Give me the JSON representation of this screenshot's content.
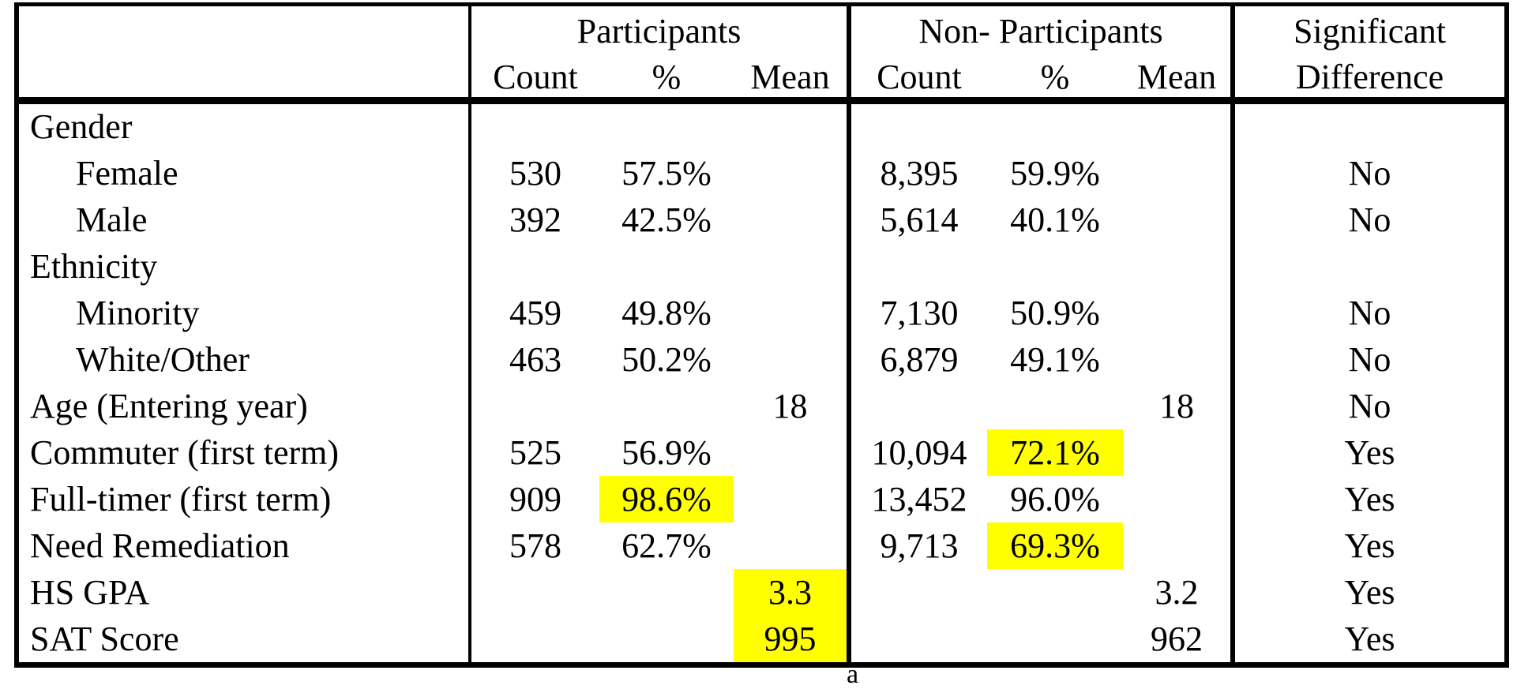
{
  "colors": {
    "highlight": "#FFFF00",
    "border": "#000000",
    "text": "#000000",
    "background": "#FFFFFF"
  },
  "header": {
    "corner": "",
    "participants_group": "Participants",
    "non_participants_group": "Non- Participants",
    "significant_line1": "Significant",
    "significant_line2": "Difference",
    "p_sub": {
      "count": "Count",
      "pct": "%",
      "mean": "Mean"
    },
    "np_sub": {
      "count": "Count",
      "pct": "%",
      "mean": "Mean"
    }
  },
  "rows": [
    {
      "label": "Gender"
    },
    {
      "label": "Female",
      "p_count": "530",
      "p_pct": "57.5%",
      "np_count": "8,395",
      "np_pct": "59.9%",
      "sig": "No"
    },
    {
      "label": "Male",
      "p_count": "392",
      "p_pct": "42.5%",
      "np_count": "5,614",
      "np_pct": "40.1%",
      "sig": "No"
    },
    {
      "label": "Ethnicity"
    },
    {
      "label": "Minority",
      "p_count": "459",
      "p_pct": "49.8%",
      "np_count": "7,130",
      "np_pct": "50.9%",
      "sig": "No"
    },
    {
      "label": "White/Other",
      "p_count": "463",
      "p_pct": "50.2%",
      "np_count": "6,879",
      "np_pct": "49.1%",
      "sig": "No"
    },
    {
      "label": "Age (Entering year)",
      "p_mean": "18",
      "np_mean": "18",
      "sig": "No"
    },
    {
      "label": "Commuter (first term)",
      "p_count": "525",
      "p_pct": "56.9%",
      "np_count": "10,094",
      "np_pct": "72.1%",
      "np_pct_highlighted": true,
      "sig": "Yes"
    },
    {
      "label": "Full-timer (first term)",
      "p_count": "909",
      "p_pct": "98.6%",
      "p_pct_highlighted": true,
      "np_count": "13,452",
      "np_pct": "96.0%",
      "sig": "Yes"
    },
    {
      "label": "Need Remediation",
      "p_count": "578",
      "p_pct": "62.7%",
      "np_count": "9,713",
      "np_pct": "69.3%",
      "np_pct_highlighted": true,
      "sig": "Yes"
    },
    {
      "label": "HS GPA",
      "p_mean": "3.3",
      "p_mean_highlighted": true,
      "np_mean": "3.2",
      "sig": "Yes"
    },
    {
      "label": "SAT Score",
      "p_mean": "995",
      "p_mean_highlighted": true,
      "np_mean": "962",
      "sig": "Yes"
    }
  ],
  "footnote_marker": "a"
}
